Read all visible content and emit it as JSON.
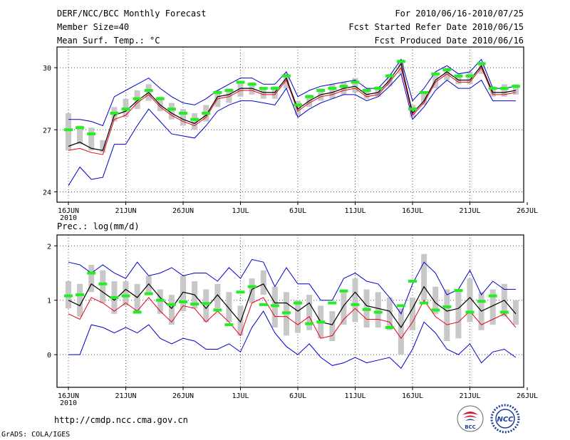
{
  "header": {
    "title": "DERF/NCC/BCC Monthly Forecast",
    "member_size": "Member Size=40",
    "variable_top": "Mean Surf. Temp.: °C",
    "period": "For 2010/06/16-2010/07/25",
    "start_date": "Fcst Started Refer Date 2010/06/15",
    "produced_date": "Fcst Produced Date 2010/06/16"
  },
  "footer": {
    "url": "http://cmdp.ncc.cma.gov.cn",
    "grads": "GrADS: COLA/IGES",
    "logo_bcc_text": "BCC",
    "logo_ncc_text": "NCC"
  },
  "colors": {
    "upper": "#0000cc",
    "lower": "#0000cc",
    "mean": "#000000",
    "median": "#e8001c",
    "box": "#c8c8c8",
    "marker": "#22ee22"
  },
  "chart_data": [
    {
      "type": "line",
      "title": "Mean Surf. Temp.: °C",
      "xlabel": "",
      "ylabel": "",
      "xlim": [
        0,
        40
      ],
      "ylim": [
        23.5,
        31
      ],
      "yticks": [
        24,
        27,
        30
      ],
      "xticks": [
        {
          "day": 0,
          "label": "16JUN",
          "sub": "2010"
        },
        {
          "day": 5,
          "label": "21JUN"
        },
        {
          "day": 10,
          "label": "26JUN"
        },
        {
          "day": 15,
          "label": "1JUL"
        },
        {
          "day": 20,
          "label": "6JUL"
        },
        {
          "day": 25,
          "label": "11JUL"
        },
        {
          "day": 30,
          "label": "16JUL"
        },
        {
          "day": 35,
          "label": "21JUL"
        },
        {
          "day": 40,
          "label": "26JUL"
        }
      ],
      "x": [
        0,
        1,
        2,
        3,
        4,
        5,
        6,
        7,
        8,
        9,
        10,
        11,
        12,
        13,
        14,
        15,
        16,
        17,
        18,
        19,
        20,
        21,
        22,
        23,
        24,
        25,
        26,
        27,
        28,
        29,
        30,
        31,
        32,
        33,
        34,
        35,
        36,
        37,
        38,
        39
      ],
      "series": [
        {
          "name": "max",
          "role": "upper",
          "values": [
            27.5,
            27.5,
            27.4,
            27.2,
            28.6,
            28.9,
            29.2,
            29.5,
            29.0,
            28.6,
            28.3,
            28.2,
            28.5,
            28.9,
            29.2,
            29.5,
            29.5,
            29.2,
            29.2,
            29.8,
            28.6,
            28.9,
            29.1,
            29.2,
            29.3,
            29.4,
            29.0,
            29.0,
            29.6,
            30.4,
            28.4,
            29.0,
            29.8,
            30.1,
            29.7,
            29.8,
            30.4,
            29.0,
            29.0,
            29.1
          ]
        },
        {
          "name": "min",
          "role": "lower",
          "values": [
            24.3,
            25.2,
            24.6,
            24.7,
            26.3,
            26.3,
            27.2,
            28.0,
            27.4,
            26.8,
            26.7,
            26.6,
            27.2,
            27.9,
            28.2,
            28.4,
            28.4,
            28.3,
            28.2,
            29.0,
            27.6,
            28.0,
            28.3,
            28.5,
            28.7,
            28.7,
            28.4,
            28.6,
            29.1,
            29.7,
            27.5,
            28.1,
            28.9,
            29.4,
            29.0,
            29.0,
            29.4,
            28.4,
            28.4,
            28.4
          ]
        },
        {
          "name": "mean",
          "role": "mean",
          "values": [
            26.2,
            26.4,
            26.1,
            26.0,
            27.7,
            27.9,
            28.4,
            28.8,
            28.2,
            27.8,
            27.5,
            27.3,
            27.7,
            28.6,
            28.7,
            29.0,
            29.0,
            28.8,
            28.8,
            29.5,
            28.0,
            28.4,
            28.7,
            28.8,
            29.0,
            29.1,
            28.7,
            28.8,
            29.4,
            30.2,
            27.8,
            28.4,
            29.4,
            29.8,
            29.4,
            29.4,
            30.1,
            28.8,
            28.8,
            28.9
          ]
        },
        {
          "name": "median",
          "role": "median",
          "values": [
            26.0,
            26.1,
            25.9,
            25.8,
            27.5,
            27.7,
            28.3,
            28.7,
            28.1,
            27.7,
            27.4,
            27.2,
            27.6,
            28.5,
            28.6,
            28.9,
            28.9,
            28.7,
            28.7,
            29.4,
            27.9,
            28.3,
            28.6,
            28.7,
            28.9,
            29.0,
            28.6,
            28.7,
            29.3,
            30.0,
            27.7,
            28.3,
            29.3,
            29.7,
            29.3,
            29.3,
            30.0,
            28.7,
            28.7,
            28.8
          ]
        },
        {
          "name": "box_low",
          "role": "box_low",
          "values": [
            26.0,
            26.3,
            26.0,
            25.9,
            27.4,
            27.6,
            28.0,
            28.4,
            27.9,
            27.5,
            27.2,
            27.0,
            27.4,
            28.1,
            28.3,
            28.6,
            28.7,
            28.5,
            28.5,
            29.0,
            27.7,
            28.1,
            28.4,
            28.5,
            28.7,
            28.8,
            28.5,
            28.6,
            29.1,
            29.7,
            27.6,
            28.2,
            29.0,
            29.4,
            29.2,
            29.2,
            29.7,
            28.6,
            28.6,
            28.7
          ]
        },
        {
          "name": "box_high",
          "role": "box_high",
          "values": [
            27.8,
            27.2,
            27.1,
            26.5,
            28.1,
            28.5,
            28.9,
            29.2,
            28.6,
            28.3,
            28.0,
            27.8,
            28.2,
            28.9,
            29.0,
            29.3,
            29.3,
            29.0,
            29.1,
            29.7,
            28.4,
            28.7,
            29.0,
            29.2,
            29.3,
            29.5,
            29.0,
            29.1,
            29.7,
            30.4,
            28.2,
            28.8,
            29.7,
            30.0,
            29.6,
            29.8,
            30.2,
            29.1,
            29.2,
            29.2
          ]
        },
        {
          "name": "marker",
          "role": "marker",
          "values": [
            27.0,
            27.1,
            26.8,
            null,
            27.8,
            28.0,
            28.5,
            28.9,
            28.5,
            28.0,
            27.8,
            27.5,
            27.8,
            28.8,
            28.9,
            29.3,
            29.2,
            29.0,
            29.0,
            29.6,
            28.2,
            28.6,
            28.9,
            29.0,
            29.1,
            29.3,
            28.9,
            29.0,
            29.6,
            30.3,
            28.0,
            28.8,
            29.7,
            29.9,
            29.6,
            29.6,
            30.2,
            29.0,
            29.0,
            29.1
          ]
        }
      ]
    },
    {
      "type": "line",
      "title": "Prec.: log(mm/d)",
      "xlabel": "",
      "ylabel": "",
      "xlim": [
        0,
        40
      ],
      "ylim": [
        -0.6,
        2.2
      ],
      "yticks": [
        0,
        1,
        2
      ],
      "xticks": [
        {
          "day": 0,
          "label": "16JUN",
          "sub": "2010"
        },
        {
          "day": 5,
          "label": "21JUN"
        },
        {
          "day": 10,
          "label": "26JUN"
        },
        {
          "day": 15,
          "label": "1JUL"
        },
        {
          "day": 20,
          "label": "6JUL"
        },
        {
          "day": 25,
          "label": "11JUL"
        },
        {
          "day": 30,
          "label": "16JUL"
        },
        {
          "day": 35,
          "label": "21JUL"
        },
        {
          "day": 40,
          "label": "26JUL"
        }
      ],
      "x": [
        0,
        1,
        2,
        3,
        4,
        5,
        6,
        7,
        8,
        9,
        10,
        11,
        12,
        13,
        14,
        15,
        16,
        17,
        18,
        19,
        20,
        21,
        22,
        23,
        24,
        25,
        26,
        27,
        28,
        29,
        30,
        31,
        32,
        33,
        34,
        35,
        36,
        37,
        38,
        39
      ],
      "series": [
        {
          "name": "max",
          "role": "upper",
          "values": [
            1.7,
            1.65,
            1.5,
            1.65,
            1.5,
            1.4,
            1.7,
            1.45,
            1.5,
            1.6,
            1.45,
            1.5,
            1.5,
            1.35,
            1.6,
            1.4,
            1.75,
            1.7,
            1.25,
            1.6,
            1.3,
            1.3,
            1.0,
            1.0,
            1.4,
            1.5,
            1.35,
            1.3,
            1.05,
            0.75,
            1.3,
            1.7,
            1.5,
            1.1,
            1.2,
            1.55,
            1.1,
            1.35,
            1.2,
            1.2
          ]
        },
        {
          "name": "min",
          "role": "lower",
          "values": [
            0.0,
            0.0,
            0.55,
            0.5,
            0.4,
            0.5,
            0.4,
            0.55,
            0.3,
            0.2,
            0.3,
            0.25,
            0.1,
            0.1,
            0.2,
            0.05,
            0.5,
            0.8,
            0.4,
            0.15,
            0.0,
            0.2,
            -0.05,
            -0.2,
            -0.15,
            -0.05,
            -0.15,
            -0.1,
            -0.05,
            -0.25,
            0.1,
            0.6,
            0.4,
            0.1,
            0.0,
            0.2,
            -0.15,
            0.05,
            0.1,
            -0.05
          ]
        },
        {
          "name": "mean",
          "role": "mean",
          "values": [
            1.0,
            0.9,
            1.3,
            1.15,
            1.0,
            1.2,
            1.05,
            1.3,
            1.05,
            0.85,
            1.15,
            1.1,
            0.85,
            1.1,
            0.85,
            0.6,
            1.2,
            1.3,
            0.95,
            0.95,
            0.8,
            0.95,
            0.6,
            0.55,
            0.9,
            1.15,
            0.9,
            0.85,
            0.8,
            0.5,
            0.85,
            1.25,
            0.95,
            0.8,
            0.85,
            1.05,
            0.8,
            0.9,
            1.0,
            0.75
          ]
        },
        {
          "name": "median",
          "role": "median",
          "values": [
            0.75,
            0.65,
            1.05,
            0.95,
            0.8,
            0.95,
            0.8,
            1.05,
            0.8,
            0.6,
            0.9,
            0.85,
            0.6,
            0.8,
            0.6,
            0.35,
            0.95,
            1.05,
            0.7,
            0.7,
            0.55,
            0.7,
            0.3,
            0.35,
            0.65,
            0.85,
            0.65,
            0.65,
            0.6,
            0.3,
            0.6,
            1.0,
            0.7,
            0.55,
            0.6,
            0.8,
            0.55,
            0.65,
            0.75,
            0.5
          ]
        },
        {
          "name": "box_low",
          "role": "box_low",
          "values": [
            0.85,
            0.7,
            1.15,
            0.95,
            0.75,
            0.9,
            0.8,
            1.1,
            0.75,
            0.55,
            0.8,
            0.85,
            0.6,
            0.85,
            0.6,
            0.35,
            0.95,
            1.1,
            0.5,
            0.35,
            0.4,
            0.45,
            0.3,
            0.25,
            0.55,
            0.6,
            0.5,
            0.5,
            0.45,
            0.0,
            0.45,
            1.0,
            0.75,
            0.25,
            0.3,
            0.6,
            0.45,
            0.55,
            0.7,
            0.55
          ]
        },
        {
          "name": "box_high",
          "role": "box_high",
          "values": [
            1.35,
            1.3,
            1.65,
            1.55,
            1.35,
            1.35,
            1.3,
            1.45,
            1.2,
            1.1,
            1.45,
            1.35,
            1.2,
            1.3,
            1.15,
            0.9,
            1.4,
            1.55,
            1.25,
            1.15,
            1.0,
            1.1,
            0.9,
            0.8,
            1.2,
            1.4,
            1.2,
            1.15,
            1.05,
            0.85,
            1.05,
            1.85,
            1.25,
            1.2,
            1.2,
            1.4,
            1.15,
            1.2,
            1.3,
            1.0
          ]
        },
        {
          "name": "marker",
          "role": "marker",
          "values": [
            1.08,
            1.1,
            1.5,
            1.3,
            1.05,
            1.08,
            0.78,
            1.12,
            1.0,
            0.92,
            0.97,
            0.93,
            0.94,
            0.82,
            0.55,
            1.15,
            1.25,
            0.92,
            0.9,
            0.77,
            0.95,
            0.57,
            0.6,
            0.95,
            1.17,
            0.92,
            0.83,
            0.78,
            0.5,
            0.9,
            1.35,
            0.95,
            0.82,
            0.88,
            1.18,
            0.78,
            0.98,
            1.08,
            0.78,
            null
          ]
        }
      ]
    }
  ]
}
